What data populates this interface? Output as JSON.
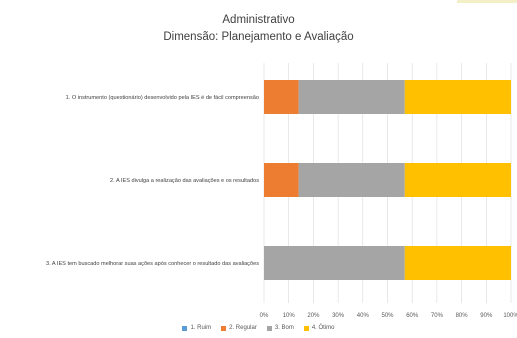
{
  "chart_data": {
    "type": "bar",
    "orientation": "horizontal",
    "stacked": "percent",
    "title": "Administrativo",
    "subtitle": "Dimensão: Planejamento e Avaliação",
    "categories": [
      "1. O instrumento (questionário) desenvolvido pela IES é de fácil compreensão",
      "2. A IES divulga a realização das avaliações e os resultados",
      "3. A IES tem buscado melhorar suas ações após conhecer o resultado das avaliações"
    ],
    "series": [
      {
        "name": "1. Ruim",
        "color": "#5b9bd5",
        "values": [
          0,
          0,
          0
        ]
      },
      {
        "name": "2. Regular",
        "color": "#ed7d31",
        "values": [
          14,
          14,
          0
        ]
      },
      {
        "name": "3. Bom",
        "color": "#a5a5a5",
        "values": [
          43,
          43,
          57
        ]
      },
      {
        "name": "4. Ótimo",
        "color": "#ffc000",
        "values": [
          43,
          43,
          43
        ]
      }
    ],
    "xlim": [
      0,
      100
    ],
    "x_ticks": [
      "0%",
      "10%",
      "20%",
      "30%",
      "40%",
      "50%",
      "60%",
      "70%",
      "80%",
      "90%",
      "100%"
    ],
    "grid": true,
    "legend_position": "bottom"
  }
}
